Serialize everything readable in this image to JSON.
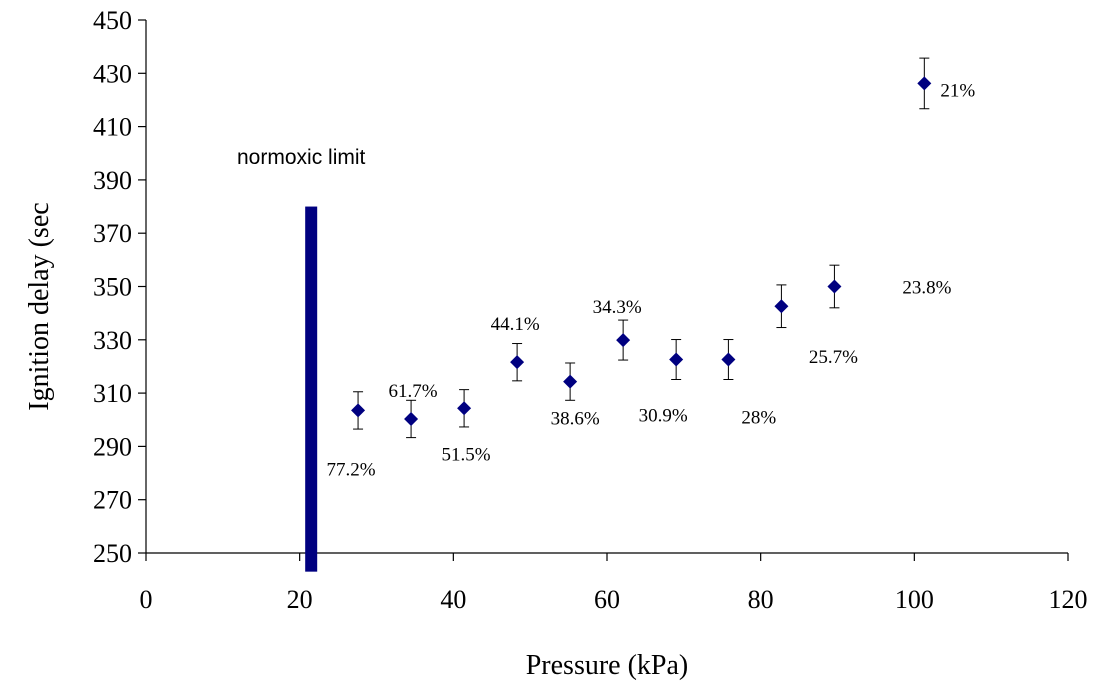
{
  "chart_data": {
    "type": "scatter",
    "xlabel": "Pressure (kPa)",
    "ylabel": "Ignition delay (sec",
    "xlim": [
      0,
      120
    ],
    "ylim": [
      250,
      450
    ],
    "xticks": [
      0,
      20,
      40,
      60,
      80,
      100,
      120
    ],
    "yticks": [
      250,
      270,
      290,
      310,
      330,
      350,
      370,
      390,
      410,
      430,
      450
    ],
    "grid": false,
    "legend": "none",
    "marker_color": "#000080",
    "series": [
      {
        "marker": "diamond",
        "points": [
          {
            "x": 27.6,
            "y": 303.5,
            "err": 7,
            "label": "77.2%"
          },
          {
            "x": 34.5,
            "y": 300.3,
            "err": 7,
            "label": "61.7%"
          },
          {
            "x": 41.4,
            "y": 304.3,
            "err": 7,
            "label": "51.5%"
          },
          {
            "x": 48.3,
            "y": 321.6,
            "err": 7,
            "label": "44.1%"
          },
          {
            "x": 55.2,
            "y": 314.3,
            "err": 7,
            "label": "38.6%"
          },
          {
            "x": 62.1,
            "y": 329.9,
            "err": 7.5,
            "label": "34.3%"
          },
          {
            "x": 69.0,
            "y": 322.6,
            "err": 7.5,
            "label": "30.9%"
          },
          {
            "x": 75.8,
            "y": 322.6,
            "err": 7.5,
            "label": "28%"
          },
          {
            "x": 82.7,
            "y": 342.6,
            "err": 8,
            "label": "25.7%"
          },
          {
            "x": 89.6,
            "y": 350.0,
            "err": 8,
            "label": "23.8%"
          },
          {
            "x": 101.3,
            "y": 426.2,
            "err": 9.5,
            "label": "21%"
          }
        ]
      }
    ],
    "annotations": [
      {
        "type": "vertical-bar",
        "x": 21.5,
        "y_from": 243,
        "y_to": 380,
        "color": "#000080",
        "label": "normoxic limit"
      }
    ]
  }
}
